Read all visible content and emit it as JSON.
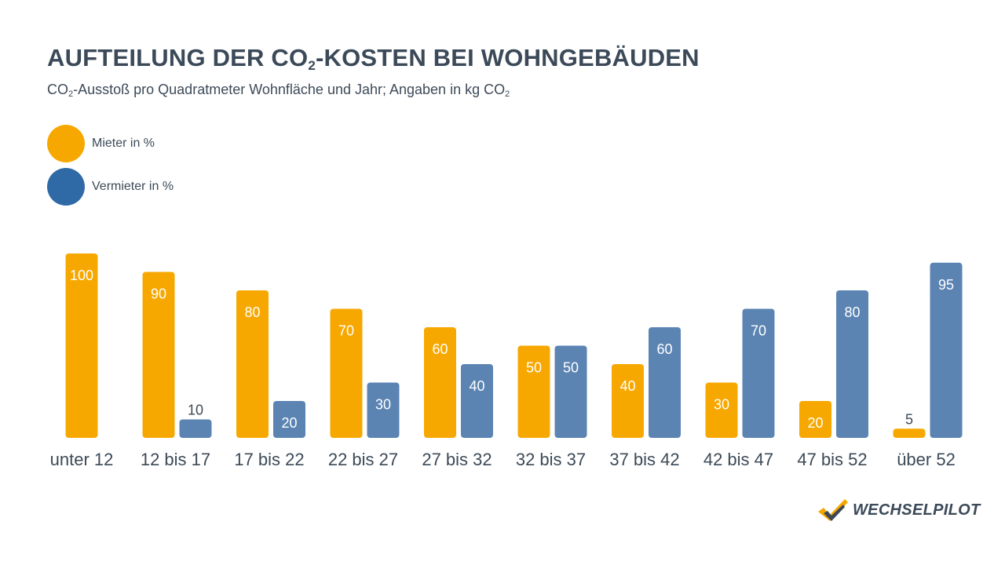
{
  "header": {
    "title_pre": "AUFTEILUNG DER CO",
    "title_sub": "2",
    "title_post": "-KOSTEN BEI WOHNGEBÄUDEN",
    "subtitle_pre": "CO",
    "subtitle_sub1": "2",
    "subtitle_mid": "-Ausstoß pro Quadratmeter Wohnfläche und Jahr; Angaben in kg CO",
    "subtitle_sub2": "2"
  },
  "legend": {
    "items": [
      {
        "label": "Mieter in %",
        "color": "#f7a800"
      },
      {
        "label": "Vermieter in %",
        "color": "#2f6aa7"
      }
    ]
  },
  "chart_data": {
    "type": "bar",
    "categories": [
      "unter 12",
      "12 bis 17",
      "17 bis 22",
      "22 bis 27",
      "27 bis 32",
      "32 bis 37",
      "37 bis 42",
      "42 bis 47",
      "47 bis 52",
      "über 52"
    ],
    "series": [
      {
        "name": "Mieter in %",
        "color": "#f7a800",
        "values": [
          100,
          90,
          80,
          70,
          60,
          50,
          40,
          30,
          20,
          5
        ]
      },
      {
        "name": "Vermieter in %",
        "color": "#5b84b3",
        "values": [
          0,
          10,
          20,
          30,
          40,
          50,
          60,
          70,
          80,
          95
        ]
      }
    ],
    "ylim": [
      0,
      100
    ],
    "grid": false
  },
  "brand": {
    "name": "WECHSELPILOT"
  }
}
